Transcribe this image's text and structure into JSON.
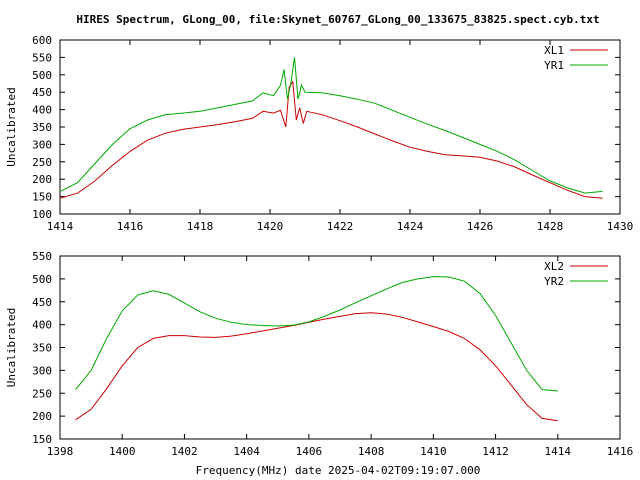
{
  "page": {
    "title": "HIRES Spectrum, GLong_00, file:Skynet_60767_GLong_00_133675_83825.spect.cyb.txt",
    "xlabel": "Frequency(MHz) date 2025-04-02T09:19:07.000"
  },
  "colors": {
    "red": "#cc0000",
    "green": "#00aa00",
    "axis": "#000000"
  },
  "chart_data": [
    {
      "type": "line",
      "ylabel": "Uncalibrated",
      "xlim": [
        1414,
        1430
      ],
      "ylim": [
        100,
        600
      ],
      "xticks": [
        1414,
        1416,
        1418,
        1420,
        1422,
        1424,
        1426,
        1428,
        1430
      ],
      "yticks": [
        100,
        150,
        200,
        250,
        300,
        350,
        400,
        450,
        500,
        550,
        600
      ],
      "legend_position": "top-right",
      "series": [
        {
          "name": "XL1",
          "color": "#cc0000",
          "points": [
            [
              1414.0,
              145
            ],
            [
              1414.5,
              160
            ],
            [
              1415.0,
              195
            ],
            [
              1415.5,
              240
            ],
            [
              1416.0,
              280
            ],
            [
              1416.5,
              312
            ],
            [
              1417.0,
              332
            ],
            [
              1417.5,
              343
            ],
            [
              1418.0,
              350
            ],
            [
              1418.5,
              357
            ],
            [
              1419.0,
              365
            ],
            [
              1419.5,
              375
            ],
            [
              1419.8,
              395
            ],
            [
              1420.1,
              390
            ],
            [
              1420.3,
              398
            ],
            [
              1420.45,
              350
            ],
            [
              1420.55,
              465
            ],
            [
              1420.65,
              480
            ],
            [
              1420.75,
              370
            ],
            [
              1420.85,
              405
            ],
            [
              1420.95,
              360
            ],
            [
              1421.05,
              395
            ],
            [
              1421.5,
              385
            ],
            [
              1422.0,
              368
            ],
            [
              1422.5,
              350
            ],
            [
              1423.0,
              330
            ],
            [
              1423.5,
              310
            ],
            [
              1424.0,
              292
            ],
            [
              1424.5,
              280
            ],
            [
              1425.0,
              270
            ],
            [
              1425.5,
              267
            ],
            [
              1426.0,
              263
            ],
            [
              1426.5,
              252
            ],
            [
              1427.0,
              235
            ],
            [
              1427.5,
              212
            ],
            [
              1428.0,
              190
            ],
            [
              1428.5,
              168
            ],
            [
              1429.0,
              150
            ],
            [
              1429.5,
              145
            ]
          ]
        },
        {
          "name": "YR1",
          "color": "#00aa00",
          "points": [
            [
              1414.0,
              165
            ],
            [
              1414.5,
              190
            ],
            [
              1415.0,
              245
            ],
            [
              1415.5,
              300
            ],
            [
              1416.0,
              345
            ],
            [
              1416.5,
              370
            ],
            [
              1417.0,
              385
            ],
            [
              1417.5,
              390
            ],
            [
              1418.0,
              395
            ],
            [
              1418.5,
              405
            ],
            [
              1419.0,
              415
            ],
            [
              1419.5,
              425
            ],
            [
              1419.8,
              448
            ],
            [
              1420.1,
              440
            ],
            [
              1420.3,
              470
            ],
            [
              1420.4,
              515
            ],
            [
              1420.5,
              430
            ],
            [
              1420.6,
              478
            ],
            [
              1420.7,
              550
            ],
            [
              1420.8,
              430
            ],
            [
              1420.9,
              470
            ],
            [
              1421.0,
              450
            ],
            [
              1421.5,
              448
            ],
            [
              1422.0,
              440
            ],
            [
              1422.5,
              430
            ],
            [
              1423.0,
              418
            ],
            [
              1423.5,
              398
            ],
            [
              1424.0,
              378
            ],
            [
              1424.5,
              358
            ],
            [
              1425.0,
              340
            ],
            [
              1425.5,
              320
            ],
            [
              1426.0,
              300
            ],
            [
              1426.5,
              280
            ],
            [
              1427.0,
              255
            ],
            [
              1427.5,
              225
            ],
            [
              1428.0,
              195
            ],
            [
              1428.5,
              175
            ],
            [
              1429.0,
              160
            ],
            [
              1429.5,
              165
            ]
          ]
        }
      ]
    },
    {
      "type": "line",
      "ylabel": "Uncalibrated",
      "xlim": [
        1398,
        1416
      ],
      "ylim": [
        150,
        550
      ],
      "xticks": [
        1398,
        1400,
        1402,
        1404,
        1406,
        1408,
        1410,
        1412,
        1414,
        1416
      ],
      "yticks": [
        150,
        200,
        250,
        300,
        350,
        400,
        450,
        500,
        550
      ],
      "legend_position": "top-right",
      "series": [
        {
          "name": "XL2",
          "color": "#cc0000",
          "points": [
            [
              1398.5,
              192
            ],
            [
              1399.0,
              215
            ],
            [
              1399.5,
              260
            ],
            [
              1400.0,
              310
            ],
            [
              1400.5,
              350
            ],
            [
              1401.0,
              370
            ],
            [
              1401.5,
              376
            ],
            [
              1402.0,
              376
            ],
            [
              1402.5,
              373
            ],
            [
              1403.0,
              372
            ],
            [
              1403.5,
              375
            ],
            [
              1404.0,
              380
            ],
            [
              1404.5,
              386
            ],
            [
              1405.0,
              392
            ],
            [
              1405.5,
              398
            ],
            [
              1406.0,
              405
            ],
            [
              1406.5,
              412
            ],
            [
              1407.0,
              418
            ],
            [
              1407.5,
              424
            ],
            [
              1408.0,
              426
            ],
            [
              1408.5,
              423
            ],
            [
              1409.0,
              416
            ],
            [
              1409.5,
              406
            ],
            [
              1410.0,
              396
            ],
            [
              1410.5,
              385
            ],
            [
              1411.0,
              370
            ],
            [
              1411.5,
              345
            ],
            [
              1412.0,
              310
            ],
            [
              1412.5,
              268
            ],
            [
              1413.0,
              225
            ],
            [
              1413.5,
              195
            ],
            [
              1414.0,
              190
            ]
          ]
        },
        {
          "name": "YR2",
          "color": "#00aa00",
          "points": [
            [
              1398.5,
              258
            ],
            [
              1399.0,
              300
            ],
            [
              1399.5,
              370
            ],
            [
              1400.0,
              430
            ],
            [
              1400.5,
              465
            ],
            [
              1401.0,
              474
            ],
            [
              1401.5,
              466
            ],
            [
              1402.0,
              447
            ],
            [
              1402.5,
              428
            ],
            [
              1403.0,
              414
            ],
            [
              1403.5,
              405
            ],
            [
              1404.0,
              400
            ],
            [
              1404.5,
              398
            ],
            [
              1405.0,
              397
            ],
            [
              1405.5,
              399
            ],
            [
              1406.0,
              406
            ],
            [
              1406.5,
              418
            ],
            [
              1407.0,
              432
            ],
            [
              1407.5,
              448
            ],
            [
              1408.0,
              463
            ],
            [
              1408.5,
              478
            ],
            [
              1409.0,
              492
            ],
            [
              1409.5,
              500
            ],
            [
              1410.0,
              505
            ],
            [
              1410.5,
              504
            ],
            [
              1411.0,
              495
            ],
            [
              1411.5,
              468
            ],
            [
              1412.0,
              420
            ],
            [
              1412.5,
              360
            ],
            [
              1413.0,
              300
            ],
            [
              1413.5,
              258
            ],
            [
              1414.0,
              255
            ]
          ]
        }
      ]
    }
  ]
}
